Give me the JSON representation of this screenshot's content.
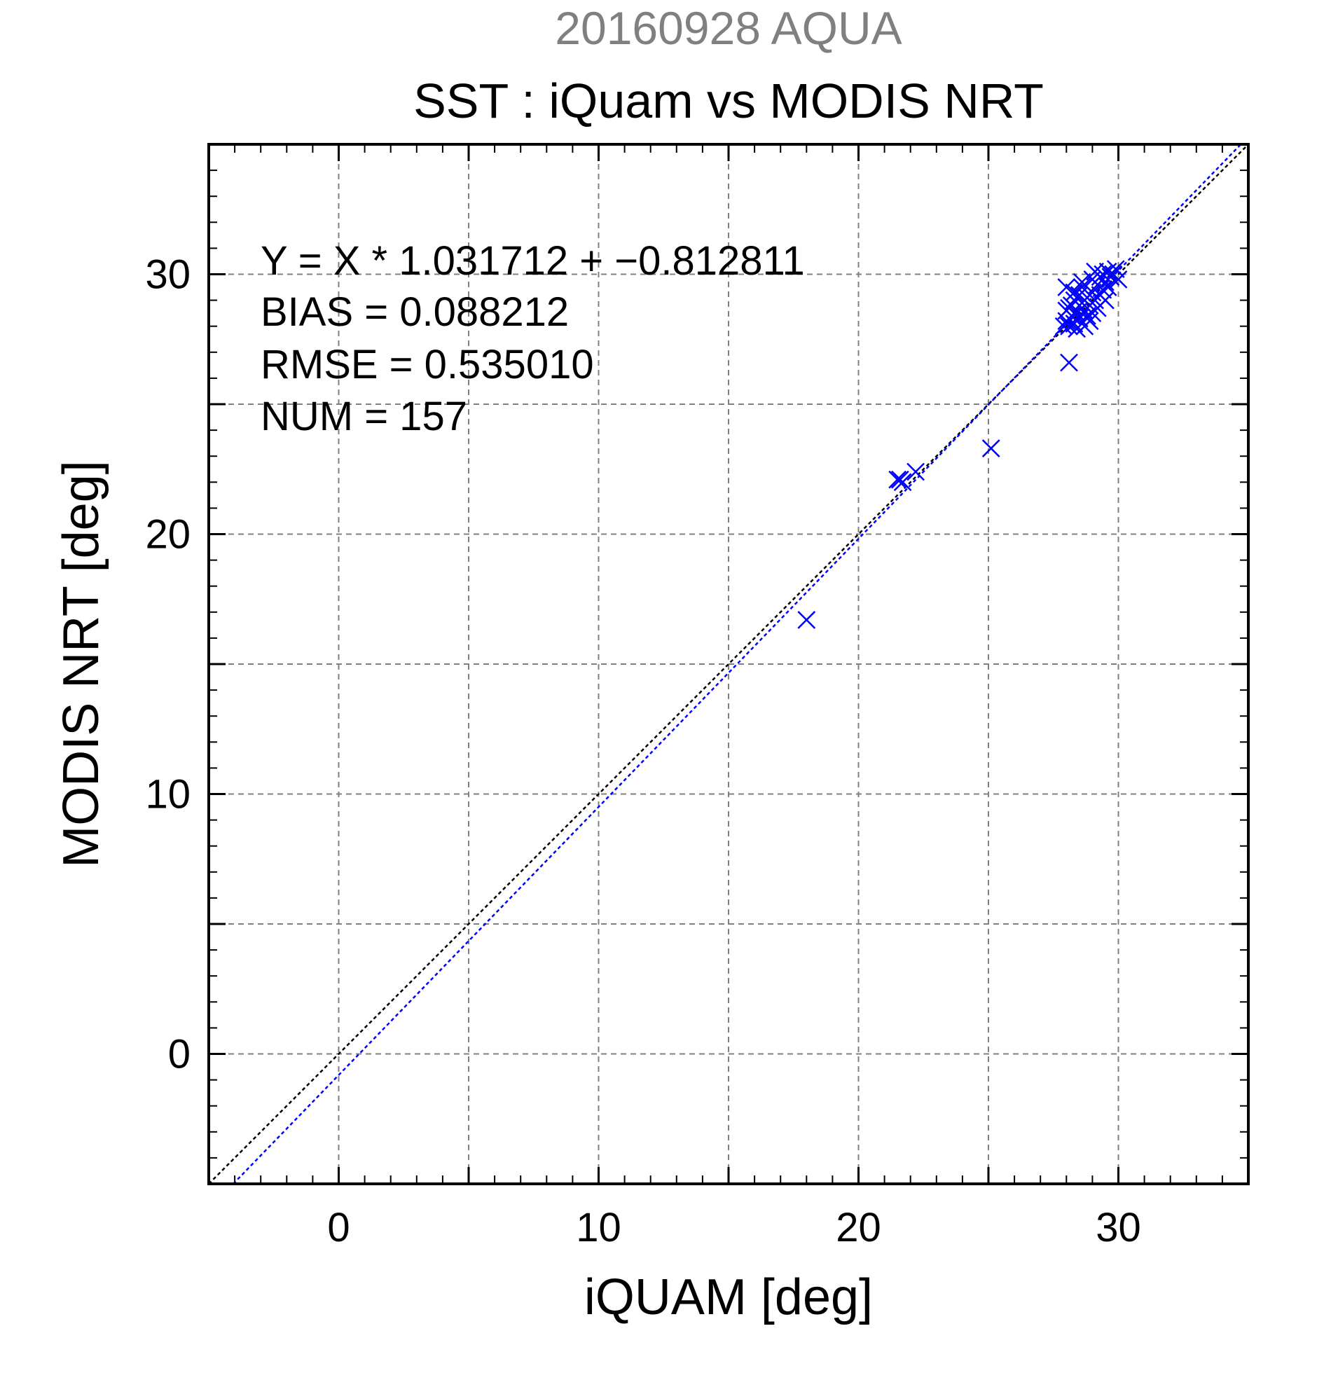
{
  "chart_data": {
    "type": "scatter",
    "supertitle": "20160928 AQUA",
    "title": "SST : iQuam vs MODIS NRT",
    "xlabel": "iQUAM [deg]",
    "ylabel": "MODIS NRT [deg]",
    "xlim": [
      -5,
      35
    ],
    "ylim": [
      -5,
      35
    ],
    "xticks": [
      0,
      10,
      20,
      30
    ],
    "yticks": [
      0,
      10,
      20,
      30
    ],
    "grid": true,
    "stats": {
      "fit": "Y = X * 1.031712 + −0.812811",
      "bias": "BIAS = 0.088212",
      "rmse": "RMSE = 0.535010",
      "num": "NUM = 157"
    },
    "fit_line": {
      "slope": 1.031712,
      "intercept": -0.812811
    },
    "colors": {
      "points": "#0000ff",
      "fit_line": "#0000ff",
      "identity_line": "#000000",
      "supertitle": "#808080"
    },
    "points": [
      [
        18.0,
        16.7
      ],
      [
        21.5,
        22.1
      ],
      [
        21.6,
        22.1
      ],
      [
        21.7,
        22.0
      ],
      [
        22.2,
        22.4
      ],
      [
        25.1,
        23.3
      ],
      [
        28.1,
        26.6
      ],
      [
        28.0,
        29.5
      ],
      [
        27.9,
        28.0
      ],
      [
        28.0,
        28.2
      ],
      [
        28.1,
        28.0
      ],
      [
        28.2,
        28.4
      ],
      [
        28.3,
        28.1
      ],
      [
        28.0,
        28.6
      ],
      [
        28.2,
        28.8
      ],
      [
        28.4,
        28.5
      ],
      [
        28.3,
        29.0
      ],
      [
        28.5,
        28.3
      ],
      [
        28.6,
        28.9
      ],
      [
        28.5,
        29.2
      ],
      [
        28.7,
        28.6
      ],
      [
        28.8,
        29.1
      ],
      [
        28.6,
        29.5
      ],
      [
        28.9,
        28.8
      ],
      [
        29.0,
        29.3
      ],
      [
        28.8,
        28.4
      ],
      [
        29.1,
        29.0
      ],
      [
        29.2,
        29.6
      ],
      [
        29.0,
        29.8
      ],
      [
        29.3,
        29.2
      ],
      [
        29.4,
        30.0
      ],
      [
        29.5,
        29.7
      ],
      [
        29.6,
        30.1
      ],
      [
        29.3,
        29.9
      ],
      [
        29.7,
        29.9
      ],
      [
        29.8,
        30.0
      ],
      [
        30.0,
        29.8
      ],
      [
        29.5,
        29.0
      ],
      [
        29.2,
        28.7
      ],
      [
        28.9,
        28.2
      ],
      [
        28.4,
        27.9
      ],
      [
        28.7,
        28.0
      ],
      [
        29.0,
        28.5
      ],
      [
        29.4,
        29.4
      ],
      [
        28.1,
        28.7
      ],
      [
        28.3,
        29.3
      ],
      [
        28.6,
        29.7
      ],
      [
        29.1,
        30.1
      ],
      [
        29.6,
        29.5
      ],
      [
        29.9,
        30.2
      ]
    ]
  }
}
